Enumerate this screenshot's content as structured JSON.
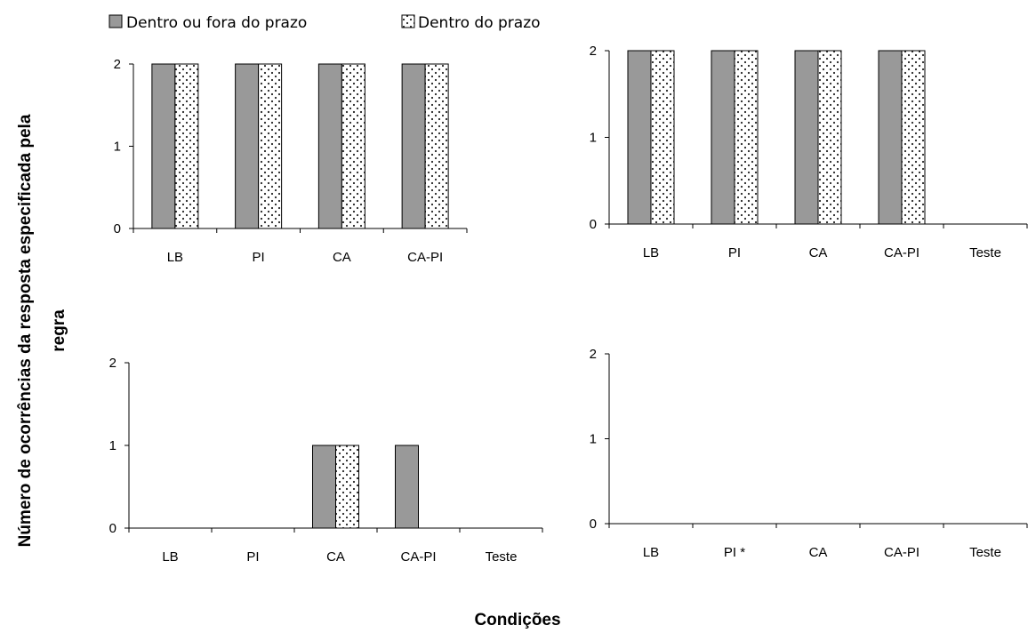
{
  "y_axis_label": {
    "line1": "Número de ocorrências  da  resposta especificada pela",
    "line2": "regra"
  },
  "x_axis_label": "Condições",
  "legend": [
    {
      "label": "Dentro ou fora do prazo",
      "color": "#999999",
      "pattern": "solid"
    },
    {
      "label": "Dentro do prazo",
      "color": "#ffffff",
      "pattern": "dotted"
    }
  ],
  "chart_data": [
    {
      "type": "bar",
      "categories": [
        "LB",
        "PI",
        "CA",
        "CA-PI"
      ],
      "ylim": [
        0,
        2
      ],
      "yticks": [
        0,
        1,
        2
      ],
      "series": [
        {
          "name": "Dentro ou fora do prazo",
          "values": [
            2,
            2,
            2,
            2
          ]
        },
        {
          "name": "Dentro do prazo",
          "values": [
            2,
            2,
            2,
            2
          ]
        }
      ]
    },
    {
      "type": "bar",
      "categories": [
        "LB",
        "PI",
        "CA",
        "CA-PI",
        "Teste"
      ],
      "ylim": [
        0,
        2
      ],
      "yticks": [
        0,
        1,
        2
      ],
      "series": [
        {
          "name": "Dentro ou fora do prazo",
          "values": [
            2,
            2,
            2,
            2,
            0
          ]
        },
        {
          "name": "Dentro do prazo",
          "values": [
            2,
            2,
            2,
            2,
            0
          ]
        }
      ]
    },
    {
      "type": "bar",
      "categories": [
        "LB",
        "PI",
        "CA",
        "CA-PI",
        "Teste"
      ],
      "ylim": [
        0,
        2
      ],
      "yticks": [
        0,
        1,
        2
      ],
      "series": [
        {
          "name": "Dentro ou fora do prazo",
          "values": [
            0,
            0,
            1,
            1,
            0
          ]
        },
        {
          "name": "Dentro do prazo",
          "values": [
            0,
            0,
            1,
            0,
            0
          ]
        }
      ]
    },
    {
      "type": "bar",
      "categories": [
        "LB",
        "PI *",
        "CA",
        "CA-PI",
        "Teste"
      ],
      "ylim": [
        0,
        2
      ],
      "yticks": [
        0,
        1,
        2
      ],
      "series": [
        {
          "name": "Dentro ou fora do prazo",
          "values": [
            0,
            0,
            0,
            0,
            0
          ]
        },
        {
          "name": "Dentro do prazo",
          "values": [
            0,
            0,
            0,
            0,
            0
          ]
        }
      ]
    }
  ]
}
